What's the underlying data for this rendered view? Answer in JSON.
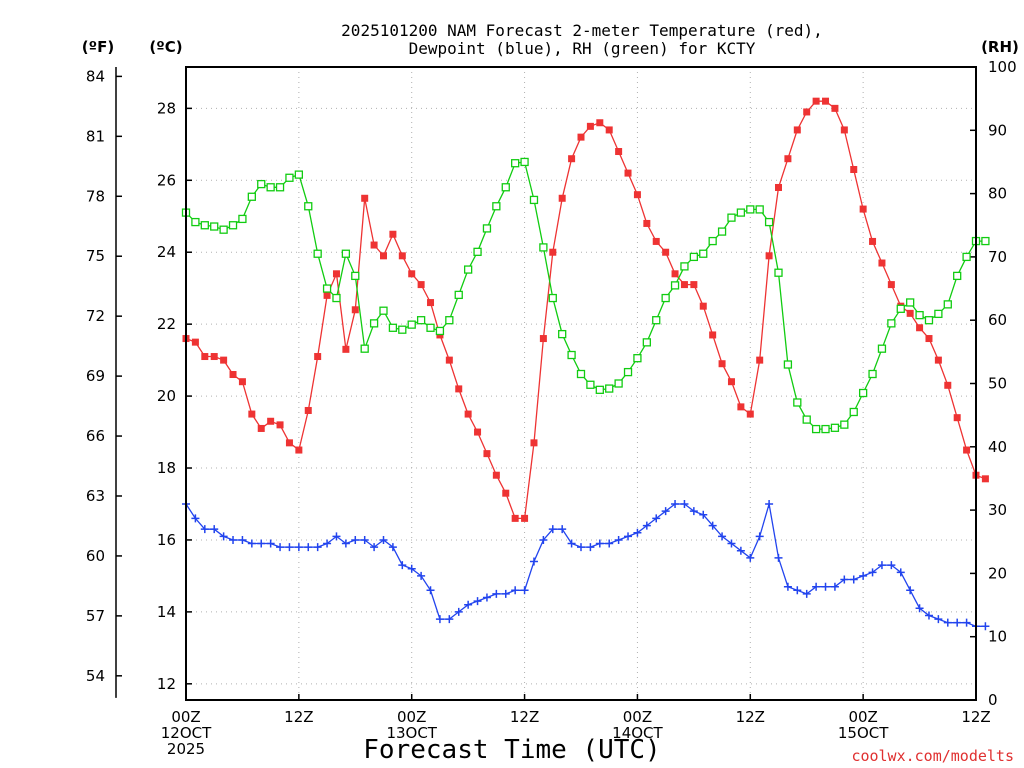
{
  "colors": {
    "temperature": "#ee3333",
    "dewpoint": "#2244ee",
    "rh": "#11cc11",
    "credit": "#e03030"
  },
  "chart_data": {
    "type": "line",
    "title": [
      "2025101200 NAM Forecast 2-meter Temperature (red),",
      "Dewpoint (blue), RH (green) for KCTY"
    ],
    "xlabel": "Forecast Time (UTC)",
    "credit": "coolwx.com/modelts",
    "units": {
      "fahrenheit": "(ºF)",
      "celsius": "(ºC)",
      "rh": "(RH)"
    },
    "x_range_hours": [
      0,
      84
    ],
    "x_ticks": [
      {
        "hour": 0,
        "lines": [
          "00Z",
          "12OCT",
          "2025"
        ]
      },
      {
        "hour": 12,
        "lines": [
          "12Z"
        ]
      },
      {
        "hour": 24,
        "lines": [
          "00Z",
          "13OCT"
        ]
      },
      {
        "hour": 36,
        "lines": [
          "12Z"
        ]
      },
      {
        "hour": 48,
        "lines": [
          "00Z",
          "14OCT"
        ]
      },
      {
        "hour": 60,
        "lines": [
          "12Z"
        ]
      },
      {
        "hour": 72,
        "lines": [
          "00Z",
          "15OCT"
        ]
      },
      {
        "hour": 84,
        "lines": [
          "12Z"
        ]
      }
    ],
    "celsius_axis": {
      "range": [
        11.55,
        29.15
      ],
      "ticks": [
        12,
        14,
        16,
        18,
        20,
        22,
        24,
        26,
        28
      ]
    },
    "fahrenheit_axis": {
      "ticks": [
        54,
        57,
        60,
        63,
        66,
        69,
        72,
        75,
        78,
        81,
        84
      ]
    },
    "rh_axis": {
      "range": [
        0,
        100
      ],
      "ticks": [
        0,
        10,
        20,
        30,
        40,
        50,
        60,
        70,
        80,
        90,
        100
      ]
    },
    "series": [
      {
        "name": "Temperature",
        "units": "C",
        "marker": "filled-square",
        "color": "#ee3333",
        "values": [
          21.6,
          21.5,
          21.1,
          21.1,
          21.0,
          20.6,
          20.4,
          19.5,
          19.1,
          19.3,
          19.2,
          18.7,
          18.5,
          19.6,
          21.1,
          22.8,
          23.4,
          21.3,
          22.4,
          25.5,
          24.2,
          23.9,
          24.5,
          23.9,
          23.4,
          23.1,
          22.6,
          21.7,
          21.0,
          20.2,
          19.5,
          19.0,
          18.4,
          17.8,
          17.3,
          16.6,
          16.6,
          18.7,
          21.6,
          24.0,
          25.5,
          26.6,
          27.2,
          27.5,
          27.6,
          27.4,
          26.8,
          26.2,
          25.6,
          24.8,
          24.3,
          24.0,
          23.4,
          23.1,
          23.1,
          22.5,
          21.7,
          20.9,
          20.4,
          19.7,
          19.5,
          21.0,
          23.9,
          25.8,
          26.6,
          27.4,
          27.9,
          28.2,
          28.2,
          28.0,
          27.4,
          26.3,
          25.2,
          24.3,
          23.7,
          23.1,
          22.5,
          22.3,
          21.9,
          21.6,
          21.0,
          20.3,
          19.4,
          18.5,
          17.8,
          17.7
        ]
      },
      {
        "name": "Dewpoint",
        "units": "C",
        "marker": "plus",
        "color": "#2244ee",
        "values": [
          17.0,
          16.6,
          16.3,
          16.3,
          16.1,
          16.0,
          16.0,
          15.9,
          15.9,
          15.9,
          15.8,
          15.8,
          15.8,
          15.8,
          15.8,
          15.9,
          16.1,
          15.9,
          16.0,
          16.0,
          15.8,
          16.0,
          15.8,
          15.3,
          15.2,
          15.0,
          14.6,
          13.8,
          13.8,
          14.0,
          14.2,
          14.3,
          14.4,
          14.5,
          14.5,
          14.6,
          14.6,
          15.4,
          16.0,
          16.3,
          16.3,
          15.9,
          15.8,
          15.8,
          15.9,
          15.9,
          16.0,
          16.1,
          16.2,
          16.4,
          16.6,
          16.8,
          17.0,
          17.0,
          16.8,
          16.7,
          16.4,
          16.1,
          15.9,
          15.7,
          15.5,
          16.1,
          17.0,
          15.5,
          14.7,
          14.6,
          14.5,
          14.7,
          14.7,
          14.7,
          14.9,
          14.9,
          15.0,
          15.1,
          15.3,
          15.3,
          15.1,
          14.6,
          14.1,
          13.9,
          13.8,
          13.7,
          13.7,
          13.7,
          13.6,
          13.6
        ]
      },
      {
        "name": "RH",
        "units": "%",
        "marker": "open-square",
        "color": "#11cc11",
        "values": [
          77.0,
          75.5,
          75.0,
          74.8,
          74.3,
          75.0,
          76.0,
          79.5,
          81.5,
          81.0,
          81.0,
          82.5,
          83.0,
          78.0,
          70.5,
          65.0,
          63.5,
          70.5,
          67.0,
          55.5,
          59.5,
          61.5,
          58.8,
          58.5,
          59.3,
          60.0,
          58.8,
          58.3,
          60.0,
          64.0,
          68.0,
          70.8,
          74.5,
          78.0,
          81.0,
          84.8,
          85.0,
          79.0,
          71.5,
          63.5,
          57.8,
          54.5,
          51.5,
          49.8,
          49.0,
          49.2,
          50.0,
          51.8,
          54.0,
          56.5,
          60.0,
          63.5,
          65.5,
          68.5,
          70.0,
          70.5,
          72.5,
          74.0,
          76.2,
          77.0,
          77.5,
          77.5,
          75.5,
          67.5,
          53.0,
          47.0,
          44.3,
          42.8,
          42.8,
          43.0,
          43.5,
          45.5,
          48.5,
          51.5,
          55.5,
          59.5,
          61.8,
          62.8,
          60.8,
          60.0,
          61.0,
          62.5,
          67.0,
          70.0,
          72.5,
          72.5
        ]
      }
    ]
  }
}
